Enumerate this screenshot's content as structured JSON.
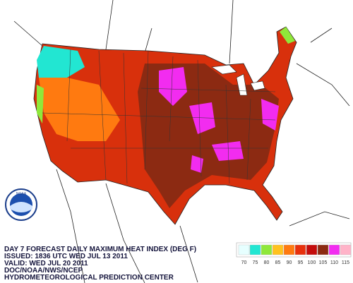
{
  "caption": {
    "lines": [
      "DAY 7 FORECAST DAILY MAXIMUM HEAT INDEX (DEG F)",
      "ISSUED: 1836 UTC WED JUL 13 2011",
      "VALID: WED JUL 20 2011",
      "DOC/NOAA/NWS/NCEP",
      "HYDROMETEOROLOGICAL PREDICTION CENTER"
    ]
  },
  "logo": {
    "text": "NOAA"
  },
  "legend": {
    "items": [
      {
        "value": 70,
        "color": "#e6ffff"
      },
      {
        "value": 75,
        "color": "#22e6d2"
      },
      {
        "value": 80,
        "color": "#8fe83a"
      },
      {
        "value": 85,
        "color": "#ffc21f"
      },
      {
        "value": 90,
        "color": "#ff7a10"
      },
      {
        "value": 95,
        "color": "#e8300c"
      },
      {
        "value": 100,
        "color": "#c40c0c"
      },
      {
        "value": 105,
        "color": "#8c2a12"
      },
      {
        "value": 110,
        "color": "#f22cf0"
      },
      {
        "value": 115,
        "color": "#ffb3c8"
      }
    ]
  }
}
